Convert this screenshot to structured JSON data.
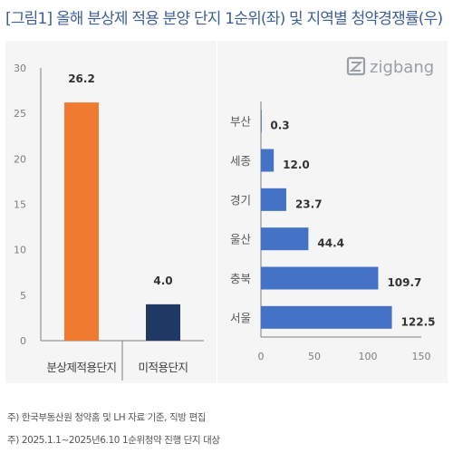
{
  "title": "[그림1] 올해 분상제 적용 분양 단지 1순위(좌) 및 지역별 청약경쟁률(우)",
  "logo_text": "zigbang",
  "footnotes": [
    "주) 한국부동산원 청약홈 및 LH 자료 기준, 직방 편집",
    "주) 2025.1.1~2025년6.10 1순위청약 진행 단지 대상"
  ],
  "colors": {
    "title": "#3f5f9b",
    "panel_bg": "#f5f5f5",
    "orange": "#ee7b30",
    "navy": "#203864",
    "blue": "#4472c4",
    "axis": "#7f7f7f",
    "grid": "#d9d9d9"
  },
  "chart_data": [
    {
      "type": "bar",
      "orientation": "vertical",
      "categories": [
        "분상제적용단지",
        "미적용단지"
      ],
      "values": [
        26.2,
        4.0
      ],
      "data_labels": [
        "26.2",
        "4.0"
      ],
      "bar_colors": [
        "#ee7b30",
        "#203864"
      ],
      "ylim": [
        0,
        30
      ],
      "yticks": [
        0,
        5,
        10,
        15,
        20,
        25,
        30
      ],
      "grid": false
    },
    {
      "type": "bar",
      "orientation": "horizontal",
      "categories": [
        "부산",
        "세종",
        "경기",
        "울산",
        "충북",
        "서울"
      ],
      "values": [
        0.3,
        12.0,
        23.7,
        44.4,
        109.7,
        122.5
      ],
      "data_labels": [
        "0.3",
        "12.0",
        "23.7",
        "44.4",
        "109.7",
        "122.5"
      ],
      "bar_color": "#4472c4",
      "xlim": [
        0,
        150
      ],
      "xticks": [
        0,
        50,
        100,
        150
      ],
      "grid": false
    }
  ]
}
